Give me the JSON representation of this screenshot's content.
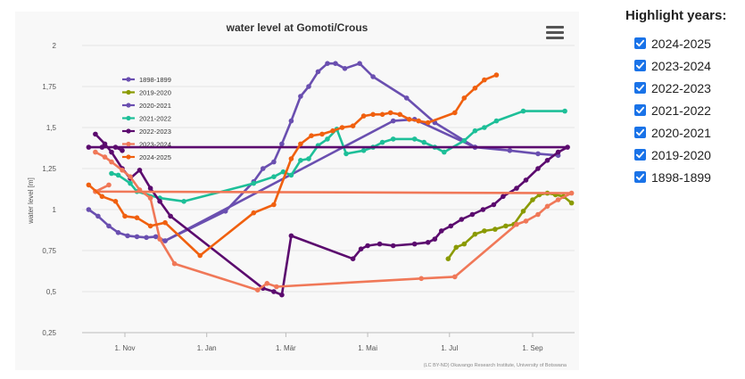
{
  "chart_data": {
    "type": "line",
    "title": "water level at Gomoti/Crous",
    "ylabel": "water level [m]",
    "xlabel": "",
    "ylim": [
      0.25,
      2.0
    ],
    "yticks": [
      "0,25",
      "0,5",
      "0,75",
      "1",
      "1,25",
      "1,5",
      "1,75",
      "2"
    ],
    "ytick_values": [
      0.25,
      0.5,
      0.75,
      1.0,
      1.25,
      1.5,
      1.75,
      2.0
    ],
    "xticks": [
      "1. Nov",
      "1. Jan",
      "1. Mär",
      "1. Mai",
      "1. Jul",
      "1. Sep"
    ],
    "xtick_values": [
      "11-01",
      "01-01",
      "03-01",
      "05-01",
      "07-01",
      "09-01"
    ],
    "x_axis": "day of hydrological year (Oct to Sep)",
    "grid": "horizontal",
    "legend_position": "top-left inside plot",
    "credit": "(LC BY-ND) Okavango Research Institute, University of Botswana",
    "series": [
      {
        "name": "1898-1899",
        "color": "#6a4fb0",
        "points": [
          [
            "10-05",
            1.0
          ],
          [
            "10-12",
            0.96
          ],
          [
            "10-20",
            0.9
          ],
          [
            "10-27",
            0.86
          ],
          [
            "11-03",
            0.84
          ],
          [
            "11-10",
            0.835
          ],
          [
            "11-17",
            0.83
          ],
          [
            "11-24",
            0.835
          ],
          [
            "12-01",
            0.81
          ],
          [
            "05-20",
            1.54
          ],
          [
            "06-05",
            1.55
          ],
          [
            "07-20",
            1.38
          ],
          [
            "08-15",
            1.36
          ],
          [
            "09-05",
            1.34
          ],
          [
            "09-20",
            1.33
          ]
        ]
      },
      {
        "name": "2019-2020",
        "color": "#8a9a00",
        "points": [
          [
            "06-30",
            0.7
          ],
          [
            "07-06",
            0.77
          ],
          [
            "07-12",
            0.79
          ],
          [
            "07-20",
            0.85
          ],
          [
            "07-27",
            0.87
          ],
          [
            "08-04",
            0.88
          ],
          [
            "08-12",
            0.9
          ],
          [
            "08-18",
            0.91
          ],
          [
            "08-25",
            0.99
          ],
          [
            "09-01",
            1.06
          ],
          [
            "09-06",
            1.09
          ],
          [
            "09-12",
            1.1
          ],
          [
            "09-18",
            1.09
          ],
          [
            "09-24",
            1.08
          ],
          [
            "09-30",
            1.04
          ]
        ]
      },
      {
        "name": "2020-2021",
        "color": "#6a4fb0",
        "points": [
          [
            "12-01",
            0.81
          ],
          [
            "01-15",
            0.99
          ],
          [
            "02-05",
            1.17
          ],
          [
            "02-12",
            1.25
          ],
          [
            "02-20",
            1.29
          ],
          [
            "02-26",
            1.4
          ],
          [
            "03-05",
            1.54
          ],
          [
            "03-12",
            1.69
          ],
          [
            "03-18",
            1.75
          ],
          [
            "03-25",
            1.84
          ],
          [
            "04-01",
            1.89
          ],
          [
            "04-07",
            1.89
          ],
          [
            "04-14",
            1.86
          ],
          [
            "04-25",
            1.89
          ],
          [
            "05-05",
            1.81
          ],
          [
            "05-30",
            1.68
          ],
          [
            "06-20",
            1.53
          ],
          [
            "07-20",
            1.38
          ]
        ]
      },
      {
        "name": "2021-2022",
        "color": "#1dbf98",
        "points": [
          [
            "10-22",
            1.22
          ],
          [
            "10-27",
            1.21
          ],
          [
            "11-05",
            1.16
          ],
          [
            "11-10",
            1.11
          ],
          [
            "11-27",
            1.07
          ],
          [
            "12-15",
            1.05
          ],
          [
            "02-05",
            1.16
          ],
          [
            "02-20",
            1.2
          ],
          [
            "02-27",
            1.23
          ],
          [
            "03-05",
            1.21
          ],
          [
            "03-12",
            1.3
          ],
          [
            "03-18",
            1.31
          ],
          [
            "03-25",
            1.39
          ],
          [
            "04-01",
            1.43
          ],
          [
            "04-08",
            1.49
          ],
          [
            "04-15",
            1.34
          ],
          [
            "04-28",
            1.36
          ],
          [
            "05-05",
            1.38
          ],
          [
            "05-12",
            1.41
          ],
          [
            "05-20",
            1.43
          ],
          [
            "06-05",
            1.43
          ],
          [
            "06-12",
            1.41
          ],
          [
            "06-20",
            1.38
          ],
          [
            "06-27",
            1.35
          ],
          [
            "07-12",
            1.42
          ],
          [
            "07-20",
            1.48
          ],
          [
            "07-27",
            1.5
          ],
          [
            "08-05",
            1.54
          ],
          [
            "08-25",
            1.6
          ],
          [
            "09-25",
            1.6
          ]
        ]
      },
      {
        "name": "2022-2023",
        "color": "#5b0a6e",
        "points": [
          [
            "10-10",
            1.46
          ],
          [
            "10-17",
            1.4
          ],
          [
            "10-22",
            1.35
          ],
          [
            "10-30",
            1.25
          ],
          [
            "11-05",
            1.19
          ],
          [
            "11-12",
            1.24
          ],
          [
            "11-20",
            1.13
          ],
          [
            "11-27",
            1.05
          ],
          [
            "12-05",
            0.96
          ],
          [
            "02-12",
            0.52
          ],
          [
            "02-20",
            0.5
          ],
          [
            "02-26",
            0.48
          ],
          [
            "03-05",
            0.84
          ],
          [
            "04-20",
            0.7
          ],
          [
            "04-26",
            0.76
          ],
          [
            "05-01",
            0.78
          ],
          [
            "05-10",
            0.79
          ],
          [
            "05-20",
            0.78
          ],
          [
            "06-05",
            0.79
          ],
          [
            "06-15",
            0.8
          ],
          [
            "06-20",
            0.82
          ],
          [
            "06-25",
            0.87
          ],
          [
            "07-02",
            0.9
          ],
          [
            "07-10",
            0.94
          ],
          [
            "07-18",
            0.97
          ],
          [
            "07-26",
            1.0
          ],
          [
            "08-03",
            1.03
          ],
          [
            "08-10",
            1.08
          ],
          [
            "08-20",
            1.13
          ],
          [
            "08-27",
            1.18
          ],
          [
            "09-05",
            1.25
          ],
          [
            "09-12",
            1.3
          ],
          [
            "09-20",
            1.35
          ],
          [
            "09-27",
            1.38
          ],
          [
            "10-05",
            1.38
          ],
          [
            "10-15",
            1.38
          ],
          [
            "10-25",
            1.38
          ],
          [
            "10-30",
            1.36
          ]
        ]
      },
      {
        "name": "2023-2024",
        "color": "#f07858",
        "points": [
          [
            "10-10",
            1.35
          ],
          [
            "10-17",
            1.32
          ],
          [
            "10-22",
            1.29
          ],
          [
            "10-30",
            1.24
          ],
          [
            "11-05",
            1.2
          ],
          [
            "11-12",
            1.12
          ],
          [
            "11-20",
            1.07
          ],
          [
            "11-27",
            0.82
          ],
          [
            "12-08",
            0.67
          ],
          [
            "02-08",
            0.51
          ],
          [
            "02-15",
            0.55
          ],
          [
            "02-22",
            0.53
          ],
          [
            "06-10",
            0.58
          ],
          [
            "07-05",
            0.59
          ],
          [
            "08-20",
            0.91
          ],
          [
            "08-27",
            0.93
          ],
          [
            "09-05",
            0.97
          ],
          [
            "09-12",
            1.02
          ],
          [
            "09-20",
            1.06
          ],
          [
            "09-30",
            1.1
          ],
          [
            "10-10",
            1.11
          ],
          [
            "10-20",
            1.15
          ]
        ]
      },
      {
        "name": "2024-2025",
        "color": "#f0600f",
        "points": [
          [
            "10-05",
            1.15
          ],
          [
            "10-15",
            1.08
          ],
          [
            "10-25",
            1.05
          ],
          [
            "11-01",
            0.96
          ],
          [
            "11-10",
            0.95
          ],
          [
            "11-20",
            0.9
          ],
          [
            "12-01",
            0.92
          ],
          [
            "12-27",
            0.72
          ],
          [
            "02-05",
            0.98
          ],
          [
            "02-20",
            1.03
          ],
          [
            "03-05",
            1.31
          ],
          [
            "03-12",
            1.4
          ],
          [
            "03-20",
            1.45
          ],
          [
            "03-28",
            1.46
          ],
          [
            "04-05",
            1.48
          ],
          [
            "04-12",
            1.5
          ],
          [
            "04-20",
            1.51
          ],
          [
            "04-28",
            1.57
          ],
          [
            "05-05",
            1.58
          ],
          [
            "05-12",
            1.58
          ],
          [
            "05-18",
            1.59
          ],
          [
            "05-25",
            1.58
          ],
          [
            "06-01",
            1.55
          ],
          [
            "06-08",
            1.54
          ],
          [
            "06-15",
            1.53
          ],
          [
            "07-05",
            1.59
          ],
          [
            "07-12",
            1.68
          ],
          [
            "07-20",
            1.74
          ],
          [
            "07-27",
            1.79
          ],
          [
            "08-05",
            1.82
          ]
        ]
      }
    ]
  },
  "legend_panel": {
    "title": "Highlight years:",
    "items": [
      {
        "label": "2024-2025",
        "checked": true
      },
      {
        "label": "2023-2024",
        "checked": true
      },
      {
        "label": "2022-2023",
        "checked": true
      },
      {
        "label": "2021-2022",
        "checked": true
      },
      {
        "label": "2020-2021",
        "checked": true
      },
      {
        "label": "2019-2020",
        "checked": true
      },
      {
        "label": "1898-1899",
        "checked": true
      }
    ]
  },
  "menu_icon": "hamburger-menu-icon"
}
